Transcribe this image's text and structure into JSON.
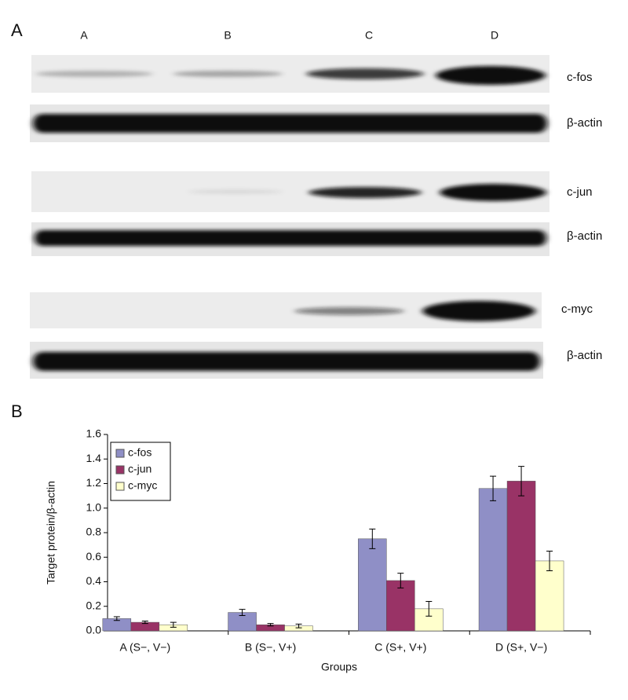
{
  "panel_a": {
    "label": "A",
    "lanes": [
      "A",
      "B",
      "C",
      "D"
    ],
    "blots": [
      {
        "label": "c-fos"
      },
      {
        "label": "β-actin"
      },
      {
        "label": "c-jun"
      },
      {
        "label": "β-actin"
      },
      {
        "label": "c-myc"
      },
      {
        "label": "β-actin"
      }
    ]
  },
  "chart_data": {
    "type": "bar",
    "panel_label": "B",
    "x_label": "Groups",
    "y_label": "Target protein/β-actin",
    "categories": [
      "A (S−, V−)",
      "B (S−, V+)",
      "C (S+, V+)",
      "D (S+, V−)"
    ],
    "series": [
      {
        "name": "c-fos",
        "color": "#8f8fc6",
        "values": [
          0.1,
          0.15,
          0.75,
          1.16
        ],
        "errors": [
          0.015,
          0.025,
          0.08,
          0.1
        ]
      },
      {
        "name": "c-jun",
        "color": "#993366",
        "values": [
          0.07,
          0.05,
          0.41,
          1.22
        ],
        "errors": [
          0.01,
          0.01,
          0.06,
          0.12
        ]
      },
      {
        "name": "c-myc",
        "color": "#ffffcc",
        "values": [
          0.05,
          0.04,
          0.18,
          0.57
        ],
        "errors": [
          0.02,
          0.015,
          0.06,
          0.08
        ]
      }
    ],
    "ylim": [
      0,
      1.6
    ],
    "yticks": [
      {
        "value": 0,
        "label": "0.0"
      },
      0.2,
      0.4,
      0.6,
      0.8,
      {
        "value": 1,
        "label": "1.0"
      },
      1.2,
      1.4,
      1.6
    ],
    "legend": "top-left"
  }
}
